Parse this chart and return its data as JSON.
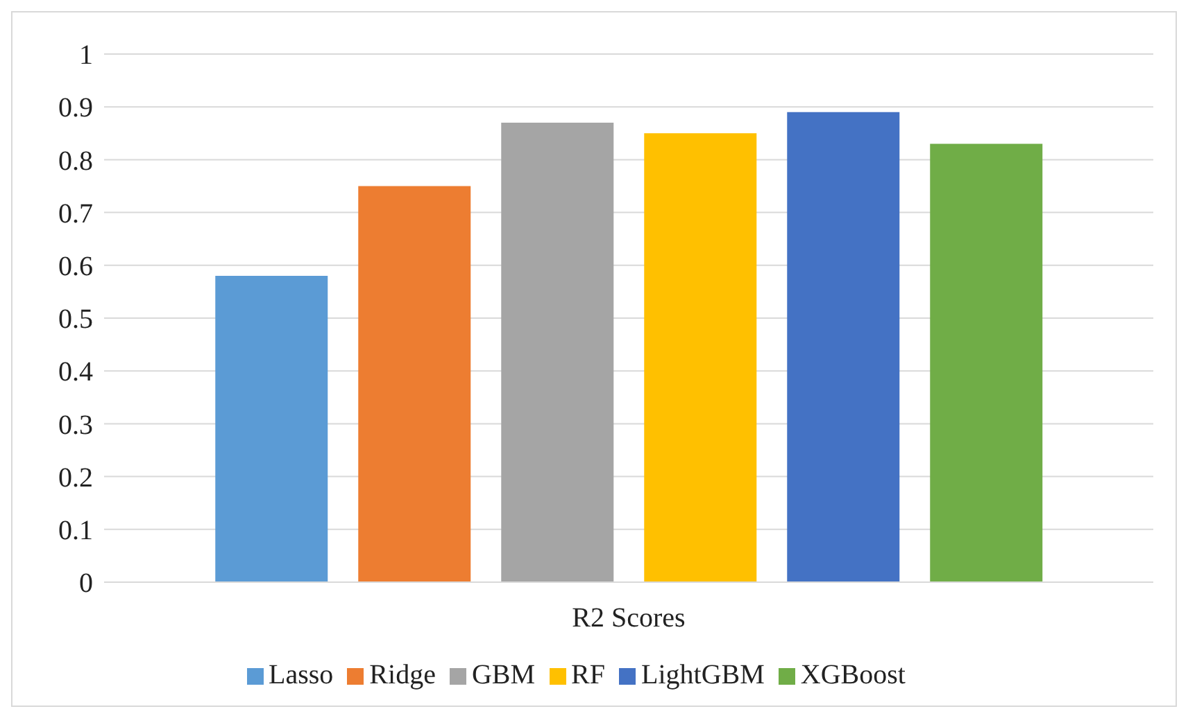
{
  "chart_data": {
    "type": "bar",
    "categories": [
      "R2 Scores"
    ],
    "series": [
      {
        "name": "Lasso",
        "color": "#5b9bd5",
        "values": [
          0.58
        ]
      },
      {
        "name": "Ridge",
        "color": "#ed7d31",
        "values": [
          0.75
        ]
      },
      {
        "name": "GBM",
        "color": "#a5a5a5",
        "values": [
          0.87
        ]
      },
      {
        "name": "RF",
        "color": "#ffc000",
        "values": [
          0.85
        ]
      },
      {
        "name": "LightGBM",
        "color": "#4472c4",
        "values": [
          0.89
        ]
      },
      {
        "name": "XGBoost",
        "color": "#70ad47",
        "values": [
          0.83
        ]
      }
    ],
    "ylim": [
      0,
      1
    ],
    "yticks": [
      0,
      0.1,
      0.2,
      0.3,
      0.4,
      0.5,
      0.6,
      0.7,
      0.8,
      0.9,
      1
    ],
    "grid": "y",
    "legend": "bottom"
  }
}
